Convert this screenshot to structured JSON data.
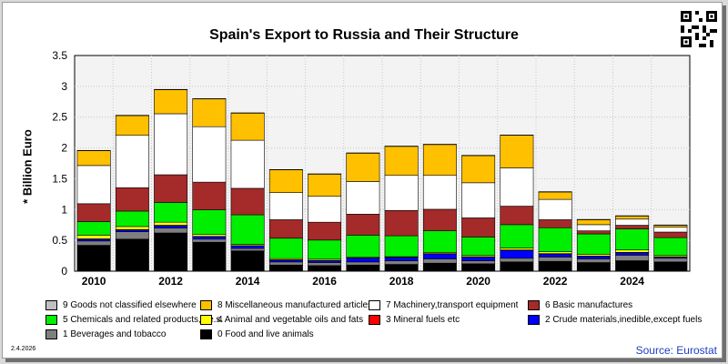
{
  "header": {
    "title": "Spain's Export to Russia and Their Structure"
  },
  "footer": {
    "date": "2.4.2026",
    "source": "Source: Eurostat"
  },
  "chart_data": {
    "type": "bar",
    "stacked": true,
    "title": "Spain's Export to Russia and Their Structure",
    "ylabel": "* Billion Euro",
    "ylim": [
      0,
      3.5
    ],
    "yticks": [
      "0",
      "0.5",
      "1",
      "1.5",
      "2",
      "2.5",
      "3",
      "3.5"
    ],
    "ytick_values": [
      0,
      0.5,
      1,
      1.5,
      2,
      2.5,
      3,
      3.5
    ],
    "x": [
      2010,
      2011,
      2012,
      2013,
      2014,
      2015,
      2016,
      2017,
      2018,
      2019,
      2020,
      2021,
      2022,
      2023,
      2024,
      2025
    ],
    "xtick_labels": [
      "2010",
      "2012",
      "2014",
      "2016",
      "2018",
      "2020",
      "2022",
      "2024"
    ],
    "xtick_years": [
      2010,
      2012,
      2014,
      2016,
      2018,
      2020,
      2022,
      2024
    ],
    "grid": true,
    "legend_position": "bottom",
    "series": [
      {
        "name": "0 Food and live animals",
        "color": "#000000",
        "values": [
          0.42,
          0.52,
          0.62,
          0.47,
          0.33,
          0.1,
          0.09,
          0.1,
          0.11,
          0.13,
          0.12,
          0.15,
          0.16,
          0.14,
          0.17,
          0.15
        ]
      },
      {
        "name": "1 Beverages and tobacco",
        "color": "#7f7f7f",
        "values": [
          0.07,
          0.12,
          0.08,
          0.05,
          0.04,
          0.05,
          0.05,
          0.05,
          0.06,
          0.07,
          0.05,
          0.06,
          0.07,
          0.06,
          0.09,
          0.06
        ]
      },
      {
        "name": "2 Crude materials,inedible,except fuels",
        "color": "#0000ff",
        "values": [
          0.03,
          0.03,
          0.04,
          0.04,
          0.04,
          0.03,
          0.03,
          0.06,
          0.05,
          0.08,
          0.06,
          0.13,
          0.05,
          0.04,
          0.04,
          0.02
        ]
      },
      {
        "name": "3 Mineral fuels etc",
        "color": "#ff0000",
        "values": [
          0.005,
          0.005,
          0.005,
          0.005,
          0.005,
          0.005,
          0.005,
          0.005,
          0.005,
          0.005,
          0.005,
          0.005,
          0.005,
          0.005,
          0.005,
          0.005
        ]
      },
      {
        "name": "4 Animal and vegetable oils and fats",
        "color": "#ffff00",
        "values": [
          0.06,
          0.05,
          0.05,
          0.03,
          0.02,
          0.02,
          0.02,
          0.01,
          0.01,
          0.02,
          0.02,
          0.03,
          0.03,
          0.03,
          0.04,
          0.02
        ]
      },
      {
        "name": "5 Chemicals and related products,n.e.s.",
        "color": "#00ee00",
        "values": [
          0.22,
          0.25,
          0.32,
          0.4,
          0.48,
          0.33,
          0.31,
          0.36,
          0.34,
          0.35,
          0.3,
          0.38,
          0.39,
          0.33,
          0.34,
          0.29
        ]
      },
      {
        "name": "6 Basic manufactures",
        "color": "#a52a2a",
        "values": [
          0.29,
          0.38,
          0.45,
          0.45,
          0.43,
          0.3,
          0.29,
          0.34,
          0.41,
          0.35,
          0.31,
          0.3,
          0.13,
          0.05,
          0.06,
          0.09
        ]
      },
      {
        "name": "7 Machinery,transport equipment",
        "color": "#ffffff",
        "values": [
          0.62,
          0.85,
          0.99,
          0.9,
          0.78,
          0.44,
          0.42,
          0.53,
          0.57,
          0.55,
          0.57,
          0.62,
          0.33,
          0.1,
          0.1,
          0.08
        ]
      },
      {
        "name": "8 Miscellaneous manufactured articles",
        "color": "#ffc000",
        "values": [
          0.24,
          0.32,
          0.39,
          0.45,
          0.44,
          0.37,
          0.36,
          0.46,
          0.47,
          0.5,
          0.44,
          0.53,
          0.12,
          0.08,
          0.05,
          0.03
        ]
      },
      {
        "name": "9 Goods not classified elsewhere",
        "color": "#c0c0c0",
        "values": [
          0.005,
          0.005,
          0.005,
          0.005,
          0.005,
          0.005,
          0.005,
          0.005,
          0.005,
          0.005,
          0.005,
          0.005,
          0.005,
          0.005,
          0.005,
          0.005
        ]
      }
    ],
    "legend_order": [
      9,
      8,
      7,
      6,
      5,
      4,
      3,
      2,
      1,
      0
    ]
  }
}
